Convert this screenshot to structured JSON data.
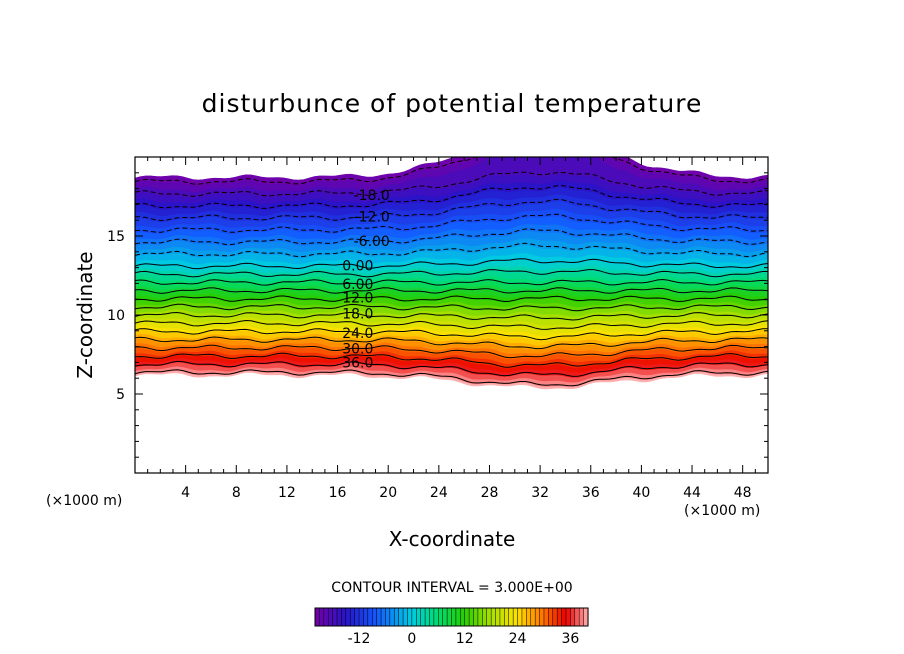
{
  "chart_data": {
    "type": "heatmap",
    "title": "disturbunce of potential temperature",
    "xlabel": "X-coordinate",
    "ylabel": "Z-coordinate",
    "x_unit_label": "(×1000 m)",
    "y_unit_label": "(×1000 m)",
    "xlim": [
      0,
      50
    ],
    "ylim": [
      0,
      20
    ],
    "x_ticks": [
      "4",
      "8",
      "12",
      "16",
      "20",
      "24",
      "28",
      "32",
      "36",
      "40",
      "44",
      "48"
    ],
    "x_tick_values": [
      4,
      8,
      12,
      16,
      20,
      24,
      28,
      32,
      36,
      40,
      44,
      48
    ],
    "y_ticks": [
      "5",
      "10",
      "15"
    ],
    "y_tick_values": [
      5,
      10,
      15
    ],
    "contour_interval_text": "CONTOUR INTERVAL = 3.000E+00",
    "contour_levels": [
      -21,
      -18,
      -15,
      -12,
      -9,
      -6,
      -3,
      0,
      3,
      6,
      9,
      12,
      15,
      18,
      21,
      24,
      27,
      30,
      33,
      36,
      39
    ],
    "contour_labels": [
      {
        "text": "-18.0",
        "value": -18,
        "x": 18.7
      },
      {
        "text": "-12.0",
        "value": -12,
        "x": 18.7
      },
      {
        "text": "-6.00",
        "value": -6,
        "x": 18.7
      },
      {
        "text": "0.00",
        "value": 0,
        "x": 17.6
      },
      {
        "text": "6.00",
        "value": 6,
        "x": 17.6
      },
      {
        "text": "12.0",
        "value": 12,
        "x": 17.6
      },
      {
        "text": "18.0",
        "value": 18,
        "x": 17.6
      },
      {
        "text": "24.0",
        "value": 24,
        "x": 17.6
      },
      {
        "text": "30.0",
        "value": 30,
        "x": 17.6
      },
      {
        "text": "36.0",
        "value": 36,
        "x": 17.6
      }
    ],
    "field_model": {
      "value_range": [
        -22,
        40
      ],
      "level_z_at_edges": {
        "-22": 18.7,
        "0": 13.1,
        "40": 6.2
      },
      "bulge": {
        "center_x": 32,
        "width_x": 8,
        "upper_amp_z": 1.6,
        "lower_amp_z": -0.8
      }
    },
    "colorbar": {
      "ticks": [
        "-12",
        "0",
        "12",
        "24",
        "36"
      ],
      "tick_values": [
        -12,
        0,
        12,
        24,
        36
      ],
      "range": [
        -22,
        40
      ]
    }
  }
}
